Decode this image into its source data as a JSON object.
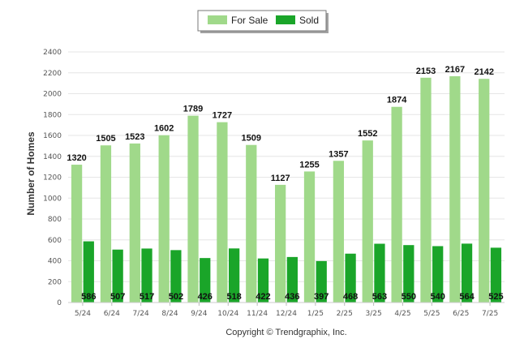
{
  "chart_data": {
    "type": "bar",
    "categories": [
      "5/24",
      "6/24",
      "7/24",
      "8/24",
      "9/24",
      "10/24",
      "11/24",
      "12/24",
      "1/25",
      "2/25",
      "3/25",
      "4/25",
      "5/25",
      "6/25",
      "7/25"
    ],
    "series": [
      {
        "name": "For Sale",
        "values": [
          1320,
          1505,
          1523,
          1602,
          1789,
          1727,
          1509,
          1127,
          1255,
          1357,
          1552,
          1874,
          2153,
          2167,
          2142
        ],
        "color": "#a0d98a"
      },
      {
        "name": "Sold",
        "values": [
          586,
          507,
          517,
          502,
          426,
          518,
          422,
          436,
          397,
          468,
          563,
          550,
          540,
          564,
          525
        ],
        "color": "#1aa529"
      }
    ],
    "ylabel": "Number of Homes",
    "ylim": [
      0,
      2400
    ],
    "yticks": [
      0,
      200,
      400,
      600,
      800,
      1000,
      1200,
      1400,
      1600,
      1800,
      2000,
      2200,
      2400
    ],
    "grid": true,
    "legend_placement": "top-center",
    "copyright": "Copyright © Trendgraphix, Inc."
  }
}
